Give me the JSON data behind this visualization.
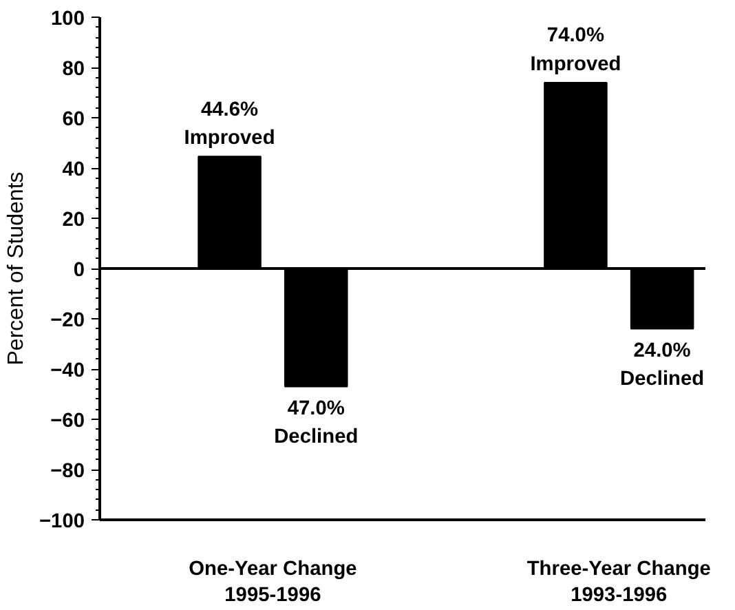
{
  "chart_data": {
    "type": "bar",
    "ylabel": "Percent of Students",
    "categories": [
      "One-Year Change\n1995-1996",
      "Three-Year Change\n1993-1996"
    ],
    "series": [
      {
        "color": "#000000",
        "values": [
          44.6,
          74.0
        ],
        "value_labels": [
          "44.6%\nImproved",
          "74.0%\nImproved"
        ]
      },
      {
        "color": "#000000",
        "values": [
          -47.0,
          -24.0
        ],
        "value_labels": [
          "47.0%\nDeclined",
          "24.0%\nDeclined"
        ]
      }
    ],
    "ylim": [
      -100,
      100
    ],
    "yticks": [
      -100,
      -80,
      -60,
      -40,
      -20,
      0,
      20,
      40,
      60,
      80,
      100
    ],
    "ref_lines": [
      {
        "axis": "y",
        "value": 0,
        "color": "#000000"
      }
    ],
    "grid": false
  }
}
